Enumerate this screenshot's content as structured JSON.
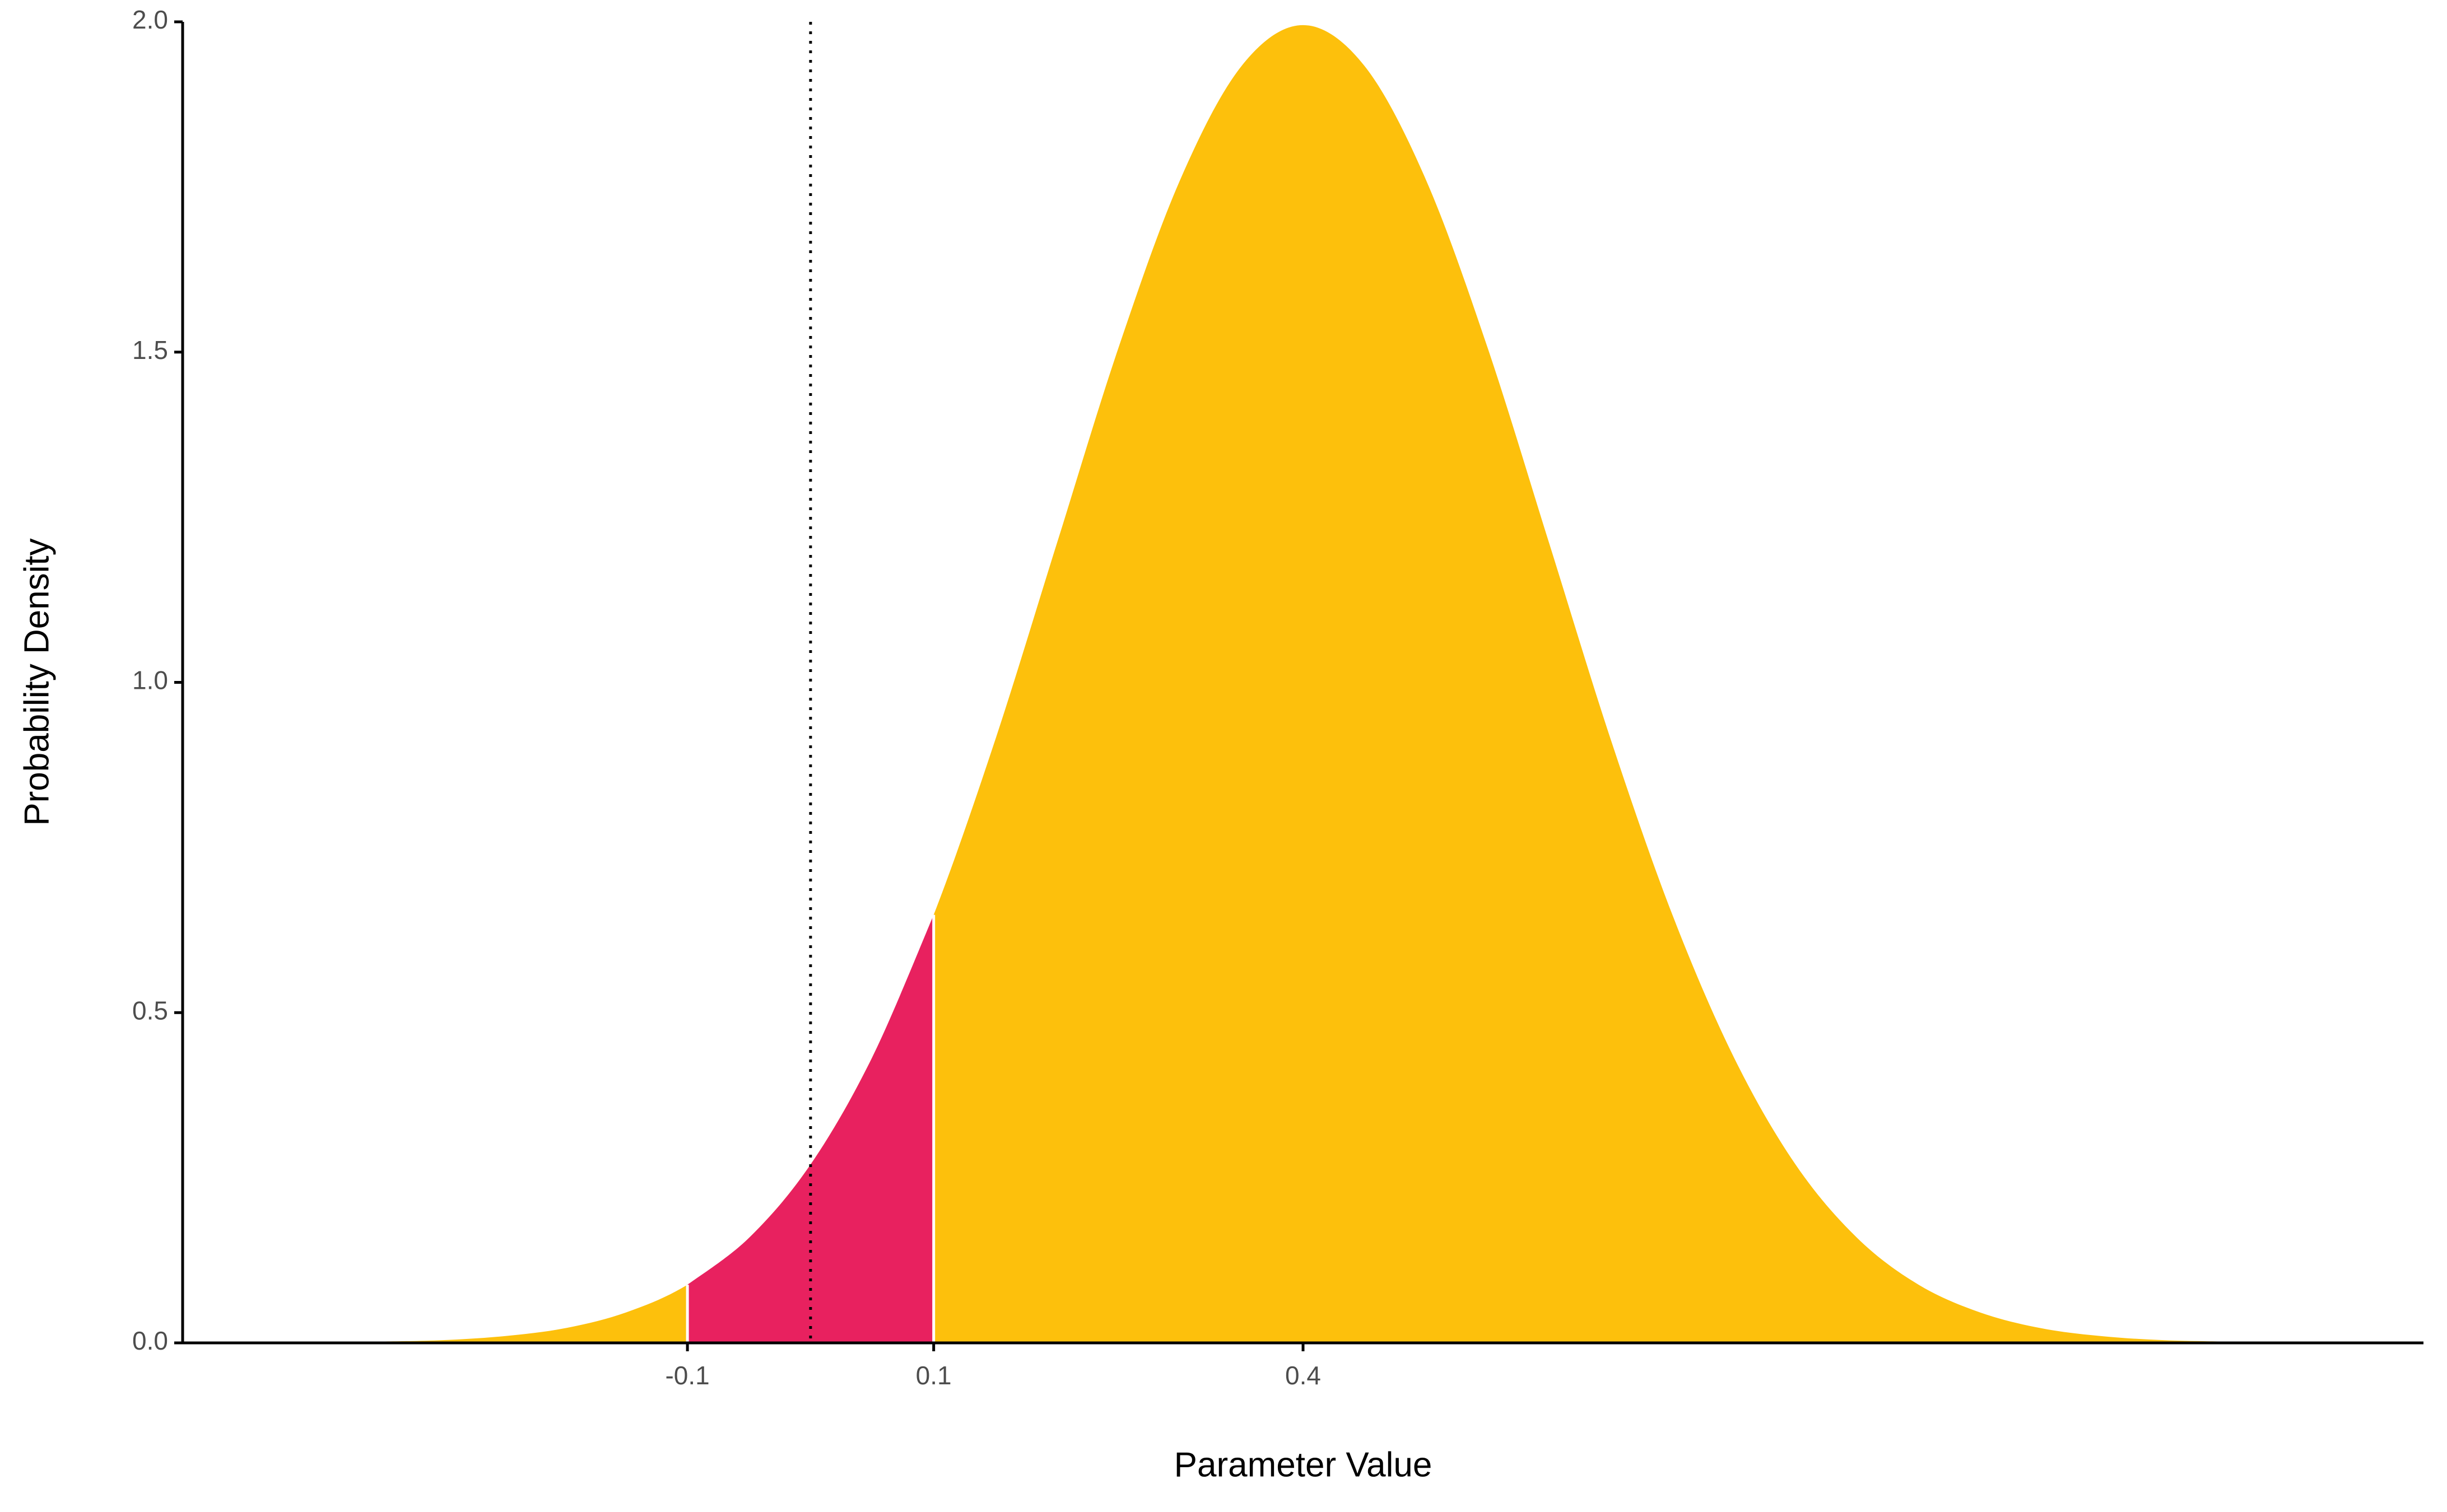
{
  "chart_data": {
    "type": "area",
    "x_label": "Parameter Value",
    "y_label": "Probability Density",
    "x": [
      -0.35,
      -0.3,
      -0.25,
      -0.2,
      -0.15,
      -0.1,
      -0.05,
      0,
      0.05,
      0.1,
      0.15,
      0.2,
      0.25,
      0.3,
      0.35,
      0.4,
      0.45,
      0.5,
      0.55,
      0.6,
      0.65,
      0.7,
      0.75,
      0.8,
      0.85,
      0.9,
      0.95,
      1.0,
      1.05,
      1.1,
      1.15
    ],
    "series": [
      {
        "color": "#fdc00c",
        "values": [
          0.002,
          0.004,
          0.01,
          0.022,
          0.046,
          0.088,
          0.159,
          0.27,
          0.432,
          0.648,
          0.913,
          1.21,
          1.506,
          1.76,
          1.933,
          1.995,
          1.933,
          1.76,
          1.506,
          1.21,
          0.913,
          0.648,
          0.432,
          0.27,
          0.159,
          0.088,
          0.046,
          0.022,
          0.01,
          0.004,
          0.002
        ]
      }
    ],
    "highlight": {
      "xlim": [
        -0.1,
        0.1
      ],
      "color": "#e8215f"
    },
    "vline": {
      "x": 0,
      "style": "dotted"
    },
    "xlim": [
      -0.51,
      1.31
    ],
    "xticks": [
      -0.1,
      0.1,
      0.4
    ],
    "ylim": [
      0,
      2
    ],
    "yticks": [
      {
        "value": 0,
        "label": "0.0"
      },
      0.5,
      {
        "value": 1,
        "label": "1.0"
      },
      1.5,
      {
        "value": 2,
        "label": "2.0"
      }
    ]
  }
}
